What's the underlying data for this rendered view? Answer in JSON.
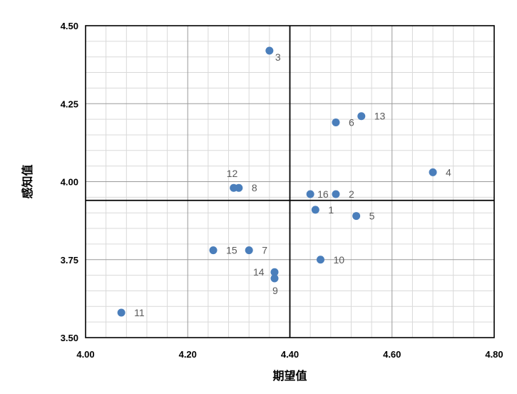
{
  "chart_data": {
    "type": "scatter",
    "title": "",
    "xlabel": "期望值",
    "ylabel": "感知值",
    "xlim": [
      4.0,
      4.8
    ],
    "ylim": [
      3.5,
      4.5
    ],
    "x_ticks": [
      "4.00",
      "4.20",
      "4.40",
      "4.60",
      "4.80"
    ],
    "y_ticks": [
      "3.50",
      "3.75",
      "4.00",
      "4.25",
      "4.50"
    ],
    "grid": true,
    "quadrant_lines": {
      "x": 4.4,
      "y": 3.94
    },
    "marker_color": "#4a7ebb",
    "points": [
      {
        "label": "1",
        "x": 4.45,
        "y": 3.91
      },
      {
        "label": "2",
        "x": 4.49,
        "y": 3.96
      },
      {
        "label": "3",
        "x": 4.36,
        "y": 4.42
      },
      {
        "label": "4",
        "x": 4.68,
        "y": 4.03
      },
      {
        "label": "5",
        "x": 4.53,
        "y": 3.89
      },
      {
        "label": "6",
        "x": 4.49,
        "y": 4.19
      },
      {
        "label": "7",
        "x": 4.32,
        "y": 3.78
      },
      {
        "label": "8",
        "x": 4.3,
        "y": 3.98
      },
      {
        "label": "9",
        "x": 4.37,
        "y": 3.69
      },
      {
        "label": "10",
        "x": 4.46,
        "y": 3.75
      },
      {
        "label": "11",
        "x": 4.07,
        "y": 3.58
      },
      {
        "label": "12",
        "x": 4.29,
        "y": 3.98
      },
      {
        "label": "13",
        "x": 4.54,
        "y": 4.21
      },
      {
        "label": "14",
        "x": 4.37,
        "y": 3.71
      },
      {
        "label": "15",
        "x": 4.25,
        "y": 3.78
      },
      {
        "label": "16",
        "x": 4.44,
        "y": 3.96
      }
    ]
  }
}
